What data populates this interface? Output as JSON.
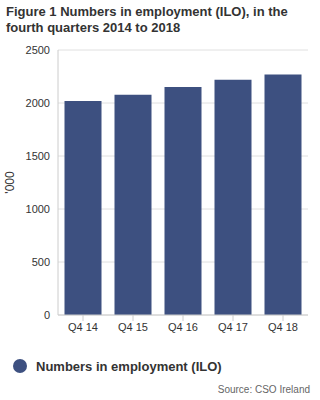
{
  "chart_data": {
    "type": "bar",
    "title": "Figure 1 Numbers in employment (ILO), in the fourth quarters 2014 to 2018",
    "ylabel": "'000",
    "categories": [
      "Q4 14",
      "Q4 15",
      "Q4 16",
      "Q4 17",
      "Q4 18"
    ],
    "series": [
      {
        "name": "Numbers in employment (ILO)",
        "color": "#3d5080",
        "values": [
          2020,
          2077,
          2150,
          2220,
          2270
        ]
      }
    ],
    "ylim": [
      0,
      2500
    ],
    "yticks": [
      0,
      500,
      1000,
      1500,
      2000,
      2500
    ],
    "grid": true,
    "legend": "bottom",
    "annotation": "Source: CSO Ireland"
  }
}
